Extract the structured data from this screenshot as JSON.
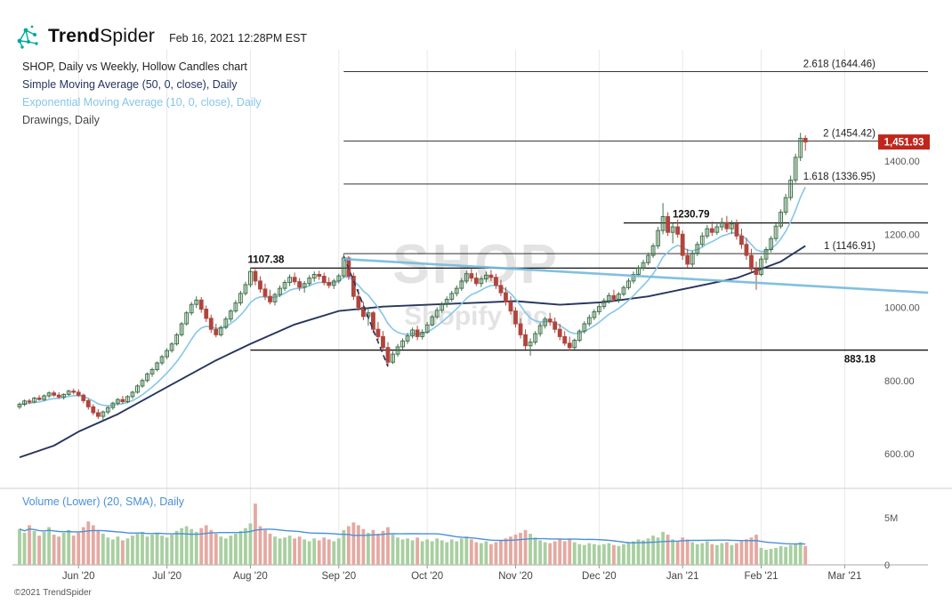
{
  "header": {
    "brand_bold": "Trend",
    "brand_light": "Spider",
    "timestamp": "Feb 16, 2021 12:28PM EST"
  },
  "legend": {
    "title": "SHOP, Daily vs Weekly, Hollow Candles chart",
    "sma": "Simple Moving Average (50, 0, close), Daily",
    "ema": "Exponential Moving Average (10, 0, close), Daily",
    "drawings": "Drawings, Daily"
  },
  "volume_legend_label": "Volume (Lower) (20, SMA), Daily",
  "watermark": {
    "line1": "SHOP",
    "line2": "Shopify Inc"
  },
  "footer_text": "©2021 TrendSpider",
  "colors": {
    "up": "#3f7249",
    "down": "#b0453c",
    "vol_up": "#a8cfa0",
    "vol_down": "#e4a9a2",
    "ema": "#85c6e8",
    "sma": "#26355f",
    "trendline": "#74b9dc",
    "vol_ma": "#4a90d9",
    "grid": "#e8e8e8",
    "hline": "#111111",
    "fib_line": "#333333",
    "badge_bg": "#c0261c",
    "badge_text": "#ffffff",
    "legend_title": "#222222",
    "legend_drawings": "#444444",
    "axis_text": "#555555",
    "logo_teal": "#00a99d"
  },
  "chart_data": {
    "type": "candlestick",
    "symbol": "SHOP",
    "title": "SHOP, Daily vs Weekly, Hollow Candles chart",
    "timeframe": "Daily vs Weekly",
    "style": "Hollow Candles",
    "x_ticks": [
      {
        "label": "Jun '20",
        "i": 12
      },
      {
        "label": "Jul '20",
        "i": 30
      },
      {
        "label": "Aug '20",
        "i": 47
      },
      {
        "label": "Sep '20",
        "i": 65
      },
      {
        "label": "Oct '20",
        "i": 83
      },
      {
        "label": "Nov '20",
        "i": 101
      },
      {
        "label": "Dec '20",
        "i": 118
      },
      {
        "label": "Jan '21",
        "i": 135
      },
      {
        "label": "Feb '21",
        "i": 151
      },
      {
        "label": "Mar '21",
        "i": 168
      }
    ],
    "price_ticks": [
      {
        "label": "1400.00",
        "value": 1400
      },
      {
        "label": "1200.00",
        "value": 1200
      },
      {
        "label": "1000.00",
        "value": 1000
      },
      {
        "label": "800.00",
        "value": 800
      },
      {
        "label": "600.00",
        "value": 600
      }
    ],
    "volume_ticks": [
      {
        "label": "5M",
        "value": 5
      },
      {
        "label": "0",
        "value": 0
      }
    ],
    "last_price": {
      "label": "1,451.93",
      "value": 1451.93
    },
    "fib": {
      "start_i": 66,
      "levels": [
        {
          "label": "2.618 (1644.46)",
          "price": 1644.46
        },
        {
          "label": "2 (1454.42)",
          "price": 1454.42
        },
        {
          "label": "1.618 (1336.95)",
          "price": 1336.95
        },
        {
          "label": "1 (1146.91)",
          "price": 1146.91
        }
      ]
    },
    "h_lines": [
      {
        "label": "1107.38",
        "price": 1107.38,
        "start_i": 47,
        "label_side": "left-above"
      },
      {
        "label": "883.18",
        "price": 883.18,
        "start_i": 47,
        "label_side": "right-below"
      },
      {
        "label": "1230.79",
        "price": 1230.79,
        "start_i": 123,
        "label_side": "mid-above"
      }
    ],
    "trendline": {
      "i1": 66,
      "p1": 1132,
      "i2": 185,
      "p2": 1040
    },
    "dashed_line": {
      "i1": 66,
      "p1": 1140,
      "i2": 75,
      "p2": 838
    },
    "indicators": {
      "ema_period": 10,
      "vol_ma_period": 20
    },
    "sma50_points": [
      [
        0,
        590
      ],
      [
        7,
        622
      ],
      [
        12,
        660
      ],
      [
        20,
        708
      ],
      [
        30,
        782
      ],
      [
        40,
        855
      ],
      [
        47,
        900
      ],
      [
        56,
        953
      ],
      [
        65,
        990
      ],
      [
        74,
        1002
      ],
      [
        83,
        1007
      ],
      [
        92,
        1012
      ],
      [
        101,
        1017
      ],
      [
        110,
        1007
      ],
      [
        119,
        1014
      ],
      [
        128,
        1030
      ],
      [
        137,
        1055
      ],
      [
        146,
        1080
      ],
      [
        155,
        1125
      ],
      [
        160,
        1168
      ]
    ],
    "candles": [
      [
        728,
        740,
        722,
        735
      ],
      [
        735,
        748,
        730,
        744
      ],
      [
        744,
        750,
        736,
        741
      ],
      [
        741,
        755,
        738,
        752
      ],
      [
        752,
        760,
        745,
        748
      ],
      [
        748,
        762,
        744,
        758
      ],
      [
        758,
        770,
        752,
        766
      ],
      [
        766,
        772,
        756,
        760
      ],
      [
        760,
        768,
        750,
        755
      ],
      [
        755,
        765,
        748,
        762
      ],
      [
        762,
        775,
        758,
        771
      ],
      [
        771,
        778,
        762,
        768
      ],
      [
        768,
        776,
        755,
        760
      ],
      [
        760,
        764,
        738,
        745
      ],
      [
        745,
        750,
        720,
        728
      ],
      [
        728,
        735,
        705,
        712
      ],
      [
        712,
        722,
        695,
        702
      ],
      [
        702,
        718,
        692,
        714
      ],
      [
        714,
        730,
        708,
        726
      ],
      [
        726,
        742,
        720,
        738
      ],
      [
        738,
        752,
        732,
        748
      ],
      [
        748,
        758,
        736,
        742
      ],
      [
        742,
        760,
        738,
        756
      ],
      [
        756,
        772,
        750,
        768
      ],
      [
        768,
        790,
        764,
        785
      ],
      [
        785,
        805,
        780,
        800
      ],
      [
        800,
        822,
        795,
        818
      ],
      [
        818,
        835,
        810,
        830
      ],
      [
        830,
        852,
        825,
        848
      ],
      [
        848,
        870,
        842,
        865
      ],
      [
        865,
        888,
        858,
        882
      ],
      [
        882,
        905,
        876,
        900
      ],
      [
        900,
        930,
        895,
        925
      ],
      [
        925,
        960,
        920,
        955
      ],
      [
        955,
        990,
        950,
        985
      ],
      [
        985,
        1015,
        978,
        1008
      ],
      [
        1008,
        1030,
        998,
        1020
      ],
      [
        1020,
        1028,
        985,
        995
      ],
      [
        995,
        1005,
        960,
        970
      ],
      [
        970,
        980,
        930,
        940
      ],
      [
        940,
        955,
        918,
        925
      ],
      [
        925,
        950,
        920,
        945
      ],
      [
        945,
        975,
        940,
        968
      ],
      [
        968,
        995,
        960,
        990
      ],
      [
        990,
        1020,
        985,
        1012
      ],
      [
        1012,
        1045,
        1005,
        1038
      ],
      [
        1038,
        1070,
        1032,
        1062
      ],
      [
        1062,
        1107,
        1055,
        1098
      ],
      [
        1098,
        1105,
        1060,
        1072
      ],
      [
        1072,
        1085,
        1040,
        1050
      ],
      [
        1050,
        1065,
        1020,
        1030
      ],
      [
        1030,
        1048,
        1008,
        1015
      ],
      [
        1015,
        1040,
        1005,
        1035
      ],
      [
        1035,
        1060,
        1028,
        1052
      ],
      [
        1052,
        1075,
        1045,
        1068
      ],
      [
        1068,
        1090,
        1058,
        1082
      ],
      [
        1082,
        1095,
        1062,
        1070
      ],
      [
        1070,
        1080,
        1045,
        1055
      ],
      [
        1055,
        1072,
        1040,
        1065
      ],
      [
        1065,
        1088,
        1058,
        1080
      ],
      [
        1080,
        1098,
        1070,
        1090
      ],
      [
        1090,
        1100,
        1075,
        1085
      ],
      [
        1085,
        1095,
        1060,
        1068
      ],
      [
        1068,
        1082,
        1052,
        1060
      ],
      [
        1060,
        1078,
        1050,
        1072
      ],
      [
        1072,
        1092,
        1065,
        1086
      ],
      [
        1086,
        1147,
        1080,
        1135
      ],
      [
        1135,
        1140,
        1075,
        1085
      ],
      [
        1085,
        1095,
        1020,
        1030
      ],
      [
        1030,
        1050,
        990,
        1000
      ],
      [
        1000,
        1015,
        965,
        975
      ],
      [
        975,
        995,
        950,
        985
      ],
      [
        985,
        990,
        930,
        940
      ],
      [
        940,
        960,
        910,
        920
      ],
      [
        920,
        935,
        880,
        890
      ],
      [
        890,
        905,
        839,
        850
      ],
      [
        850,
        880,
        845,
        872
      ],
      [
        872,
        900,
        865,
        892
      ],
      [
        892,
        915,
        885,
        908
      ],
      [
        908,
        930,
        900,
        922
      ],
      [
        922,
        945,
        915,
        938
      ],
      [
        938,
        950,
        910,
        920
      ],
      [
        920,
        940,
        912,
        932
      ],
      [
        932,
        960,
        928,
        952
      ],
      [
        952,
        980,
        948,
        974
      ],
      [
        974,
        1000,
        968,
        992
      ],
      [
        992,
        1015,
        985,
        1008
      ],
      [
        1008,
        1030,
        1000,
        1022
      ],
      [
        1022,
        1045,
        1015,
        1038
      ],
      [
        1038,
        1060,
        1030,
        1052
      ],
      [
        1052,
        1080,
        1045,
        1072
      ],
      [
        1072,
        1100,
        1065,
        1092
      ],
      [
        1092,
        1107,
        1070,
        1080
      ],
      [
        1080,
        1095,
        1058,
        1065
      ],
      [
        1065,
        1085,
        1055,
        1078
      ],
      [
        1078,
        1098,
        1068,
        1088
      ],
      [
        1088,
        1102,
        1072,
        1082
      ],
      [
        1082,
        1092,
        1050,
        1060
      ],
      [
        1060,
        1075,
        1030,
        1040
      ],
      [
        1040,
        1055,
        1005,
        1015
      ],
      [
        1015,
        1030,
        980,
        990
      ],
      [
        990,
        1000,
        945,
        955
      ],
      [
        955,
        970,
        915,
        925
      ],
      [
        925,
        940,
        885,
        895
      ],
      [
        895,
        915,
        868,
        905
      ],
      [
        905,
        935,
        898,
        928
      ],
      [
        928,
        958,
        920,
        950
      ],
      [
        950,
        975,
        942,
        968
      ],
      [
        968,
        985,
        950,
        960
      ],
      [
        960,
        972,
        930,
        940
      ],
      [
        940,
        955,
        910,
        920
      ],
      [
        920,
        935,
        895,
        902
      ],
      [
        902,
        920,
        882,
        890
      ],
      [
        890,
        915,
        885,
        910
      ],
      [
        910,
        940,
        905,
        935
      ],
      [
        935,
        962,
        928,
        955
      ],
      [
        955,
        980,
        948,
        972
      ],
      [
        972,
        995,
        965,
        988
      ],
      [
        988,
        1010,
        980,
        1002
      ],
      [
        1002,
        1025,
        995,
        1018
      ],
      [
        1018,
        1040,
        1010,
        1032
      ],
      [
        1032,
        1048,
        1015,
        1022
      ],
      [
        1022,
        1042,
        1012,
        1036
      ],
      [
        1036,
        1060,
        1030,
        1054
      ],
      [
        1054,
        1080,
        1048,
        1072
      ],
      [
        1072,
        1098,
        1065,
        1090
      ],
      [
        1090,
        1115,
        1082,
        1108
      ],
      [
        1108,
        1130,
        1100,
        1122
      ],
      [
        1122,
        1150,
        1115,
        1142
      ],
      [
        1142,
        1175,
        1135,
        1168
      ],
      [
        1168,
        1220,
        1160,
        1210
      ],
      [
        1210,
        1285,
        1200,
        1248
      ],
      [
        1248,
        1260,
        1195,
        1205
      ],
      [
        1205,
        1230,
        1175,
        1220
      ],
      [
        1220,
        1240,
        1190,
        1200
      ],
      [
        1200,
        1210,
        1130,
        1142
      ],
      [
        1142,
        1160,
        1108,
        1118
      ],
      [
        1118,
        1155,
        1110,
        1148
      ],
      [
        1148,
        1180,
        1140,
        1172
      ],
      [
        1172,
        1205,
        1165,
        1195
      ],
      [
        1195,
        1225,
        1188,
        1215
      ],
      [
        1215,
        1235,
        1195,
        1205
      ],
      [
        1205,
        1228,
        1198,
        1220
      ],
      [
        1220,
        1245,
        1210,
        1232
      ],
      [
        1232,
        1250,
        1205,
        1215
      ],
      [
        1215,
        1238,
        1200,
        1228
      ],
      [
        1228,
        1240,
        1185,
        1195
      ],
      [
        1195,
        1215,
        1160,
        1172
      ],
      [
        1172,
        1190,
        1130,
        1142
      ],
      [
        1142,
        1160,
        1095,
        1105
      ],
      [
        1105,
        1125,
        1048,
        1090
      ],
      [
        1090,
        1140,
        1085,
        1132
      ],
      [
        1132,
        1165,
        1120,
        1158
      ],
      [
        1158,
        1195,
        1150,
        1188
      ],
      [
        1188,
        1230,
        1180,
        1222
      ],
      [
        1222,
        1268,
        1215,
        1260
      ],
      [
        1260,
        1310,
        1252,
        1300
      ],
      [
        1300,
        1360,
        1292,
        1348
      ],
      [
        1348,
        1420,
        1340,
        1410
      ],
      [
        1410,
        1477,
        1400,
        1462
      ],
      [
        1462,
        1470,
        1428,
        1452
      ]
    ],
    "volumes_millions": [
      3.8,
      3.4,
      4.2,
      3.6,
      3.1,
      3.5,
      4.0,
      3.2,
      3.0,
      3.4,
      3.7,
      3.1,
      3.4,
      4.0,
      4.6,
      4.2,
      3.7,
      3.3,
      2.9,
      2.7,
      3.0,
      2.6,
      2.8,
      3.1,
      3.3,
      3.5,
      3.0,
      3.2,
      3.4,
      3.1,
      2.9,
      3.2,
      3.6,
      3.9,
      4.1,
      3.8,
      3.5,
      3.9,
      4.2,
      3.7,
      3.3,
      3.0,
      2.8,
      3.1,
      3.3,
      3.6,
      3.9,
      4.4,
      6.5,
      4.1,
      3.7,
      3.3,
      3.0,
      2.8,
      2.9,
      3.1,
      2.8,
      3.0,
      2.7,
      2.5,
      2.8,
      2.6,
      2.9,
      2.7,
      2.5,
      2.8,
      3.7,
      4.1,
      4.5,
      4.2,
      3.8,
      3.4,
      3.7,
      3.3,
      3.6,
      4.0,
      3.2,
      2.9,
      2.7,
      2.8,
      2.6,
      2.9,
      2.5,
      2.7,
      2.5,
      2.8,
      2.6,
      2.4,
      2.7,
      2.5,
      2.8,
      3.0,
      2.7,
      2.4,
      2.3,
      2.5,
      2.2,
      2.4,
      2.6,
      2.8,
      3.0,
      3.2,
      3.4,
      3.7,
      3.3,
      2.9,
      2.6,
      2.4,
      2.3,
      2.5,
      2.7,
      2.5,
      2.8,
      2.4,
      2.2,
      2.1,
      2.3,
      2.2,
      2.1,
      2.2,
      2.3,
      2.1,
      2.0,
      2.2,
      2.4,
      2.5,
      2.7,
      2.6,
      2.8,
      3.1,
      2.9,
      3.5,
      3.2,
      2.7,
      2.5,
      2.9,
      2.7,
      2.4,
      2.2,
      2.3,
      2.5,
      2.2,
      2.1,
      2.3,
      2.4,
      2.1,
      2.3,
      2.5,
      2.7,
      2.9,
      3.2,
      1.8,
      1.6,
      1.7,
      1.8,
      2.0,
      1.9,
      2.1,
      2.2,
      2.4,
      2.0
    ]
  }
}
